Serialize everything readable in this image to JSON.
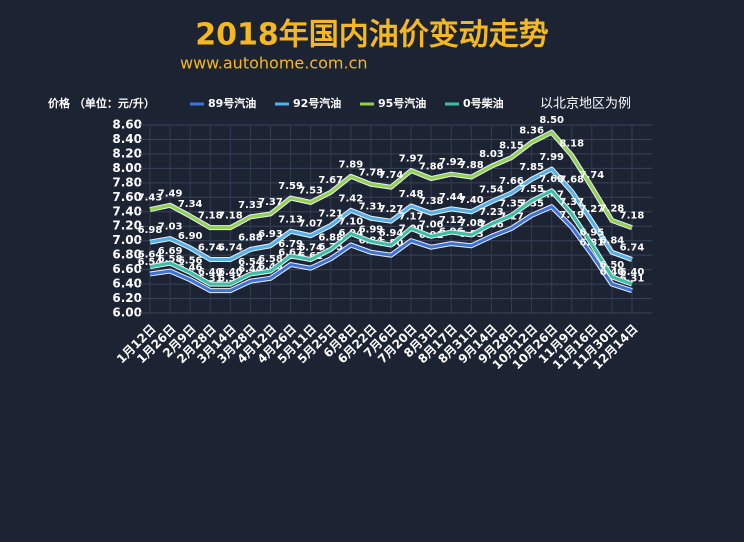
{
  "chart_data": {
    "type": "line",
    "title": "2018年国内油价变动走势",
    "subtitle": "www.autohome.com.cn",
    "y_axis_label": "价格 （单位：元/升）",
    "annotation": "以北京地区为例",
    "legend": "top",
    "grid": true,
    "categories": [
      "1月12日",
      "1月26日",
      "2月9日",
      "2月28日",
      "3月14日",
      "3月28日",
      "4月12日",
      "4月26日",
      "5月11日",
      "5月25日",
      "6月8日",
      "6月22日",
      "7月6日",
      "7月20日",
      "8月3日",
      "8月17日",
      "8月31日",
      "9月14日",
      "9月28日",
      "10月12日",
      "10月26日",
      "11月9日",
      "11月16日",
      "11月30日",
      "12月14日"
    ],
    "ylim": [
      6.0,
      8.6
    ],
    "yticks": [
      {
        "value": 6.0,
        "label": "6.00"
      },
      {
        "value": 6.2,
        "label": "6.20"
      },
      {
        "value": 6.4,
        "label": "6.40"
      },
      {
        "value": 6.6,
        "label": "6.60"
      },
      {
        "value": 6.8,
        "label": "6.80"
      },
      {
        "value": 7.0,
        "label": "7.00"
      },
      {
        "value": 7.2,
        "label": "7.20"
      },
      {
        "value": 7.4,
        "label": "7.40"
      },
      {
        "value": 7.6,
        "label": "7.60"
      },
      {
        "value": 7.8,
        "label": "7.80"
      },
      {
        "value": 8.0,
        "label": "8.00"
      },
      {
        "value": 8.2,
        "label": "8.20"
      },
      {
        "value": 8.4,
        "label": "8.40"
      },
      {
        "value": 8.6,
        "label": "8.60"
      }
    ],
    "series": [
      {
        "name": "89号汽油",
        "color": "#3d72d9",
        "values": [
          6.54,
          6.58,
          6.46,
          6.31,
          6.31,
          6.44,
          6.48,
          6.67,
          6.62,
          6.75,
          6.94,
          6.84,
          6.8,
          7.0,
          6.91,
          6.96,
          6.93,
          7.06,
          7.17,
          7.35,
          7.47,
          7.19,
          6.81,
          6.4,
          6.31
        ],
        "value_labels": [
          "6.54",
          "6.58",
          "6.46",
          "6.31",
          "6.31",
          "6.44",
          "6.48",
          "6.67",
          "6.62",
          "6.75",
          "6.94",
          "6.84",
          "6.80",
          "7.00",
          "6.91",
          "6.96",
          "6.93",
          "7.06",
          "7.17",
          "7.35",
          "7.47",
          "7.19",
          "6.81",
          "6.40",
          "6.31"
        ]
      },
      {
        "name": "92号汽油",
        "color": "#55b0e8",
        "values": [
          6.98,
          7.03,
          6.9,
          6.74,
          6.74,
          6.88,
          6.93,
          7.13,
          7.07,
          7.21,
          7.42,
          7.31,
          7.27,
          7.48,
          7.38,
          7.44,
          7.4,
          7.54,
          7.66,
          7.85,
          7.99,
          7.68,
          7.27,
          6.84,
          6.74
        ],
        "value_labels": [
          "6.98",
          "7.03",
          "6.90",
          "6.74",
          "6.74",
          "6.88",
          "6.93",
          "7.13",
          "7.07",
          "7.21",
          "7.42",
          "7.31",
          "7.27",
          "7.48",
          "7.38",
          "7.44",
          "7.40",
          "7.54",
          "7.66",
          "7.85",
          "7.99",
          "7.68",
          "7.27",
          "6.84",
          "6.74"
        ]
      },
      {
        "name": "95号汽油",
        "color": "#92d050",
        "values": [
          7.43,
          7.49,
          7.34,
          7.18,
          7.18,
          7.33,
          7.37,
          7.59,
          7.53,
          7.67,
          7.89,
          7.78,
          7.74,
          7.97,
          7.86,
          7.92,
          7.88,
          8.03,
          8.15,
          8.36,
          8.5,
          8.18,
          7.74,
          7.28,
          7.18
        ],
        "value_labels": [
          "7.43",
          "7.49",
          "7.34",
          "7.18",
          "7.18",
          "7.33",
          "7.37",
          "7.59",
          "7.53",
          "7.67",
          "7.89",
          "7.78",
          "7.74",
          "7.97",
          "7.86",
          "7.92",
          "7.88",
          "8.03",
          "8.15",
          "8.36",
          "8.50",
          "8.18",
          "7.74",
          "7.28",
          "7.18"
        ]
      },
      {
        "name": "0号柴油",
        "color": "#3cbfa0",
        "values": [
          6.64,
          6.69,
          6.56,
          6.4,
          6.4,
          6.54,
          6.58,
          6.79,
          6.74,
          6.88,
          7.1,
          6.99,
          6.94,
          7.17,
          7.06,
          7.12,
          7.08,
          7.23,
          7.35,
          7.55,
          7.69,
          7.37,
          6.95,
          6.5,
          6.4
        ],
        "value_labels": [
          "6.64",
          "6.69",
          "6.56",
          "6.40",
          "6.40",
          "6.54",
          "6.58",
          "6.79",
          "6.74",
          "6.88",
          "7.10",
          "6.99",
          "6.94",
          "7.17",
          "7.06",
          "7.12",
          "7.08",
          "7.23",
          "7.35",
          "7.55",
          "7.69",
          "7.37",
          "6.95",
          "6.50",
          "6.40"
        ]
      }
    ]
  }
}
